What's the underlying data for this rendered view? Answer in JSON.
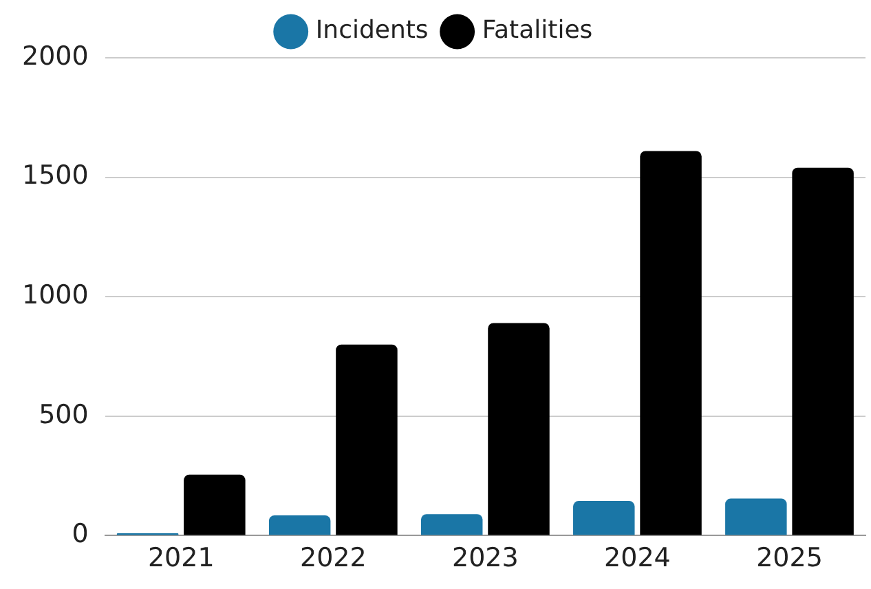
{
  "chart_data": {
    "type": "bar",
    "categories": [
      "2021",
      "2022",
      "2023",
      "2024",
      "2025"
    ],
    "series": [
      {
        "name": "Incidents",
        "color": "#1a76a6",
        "values": [
          10,
          85,
          90,
          145,
          155
        ]
      },
      {
        "name": "Fatalities",
        "color": "#000000",
        "values": [
          255,
          800,
          890,
          1610,
          1540
        ]
      }
    ],
    "ylim": [
      0,
      2000
    ],
    "yticks": [
      0,
      500,
      1000,
      1500,
      2000
    ],
    "grid": "y",
    "legend": "top"
  }
}
